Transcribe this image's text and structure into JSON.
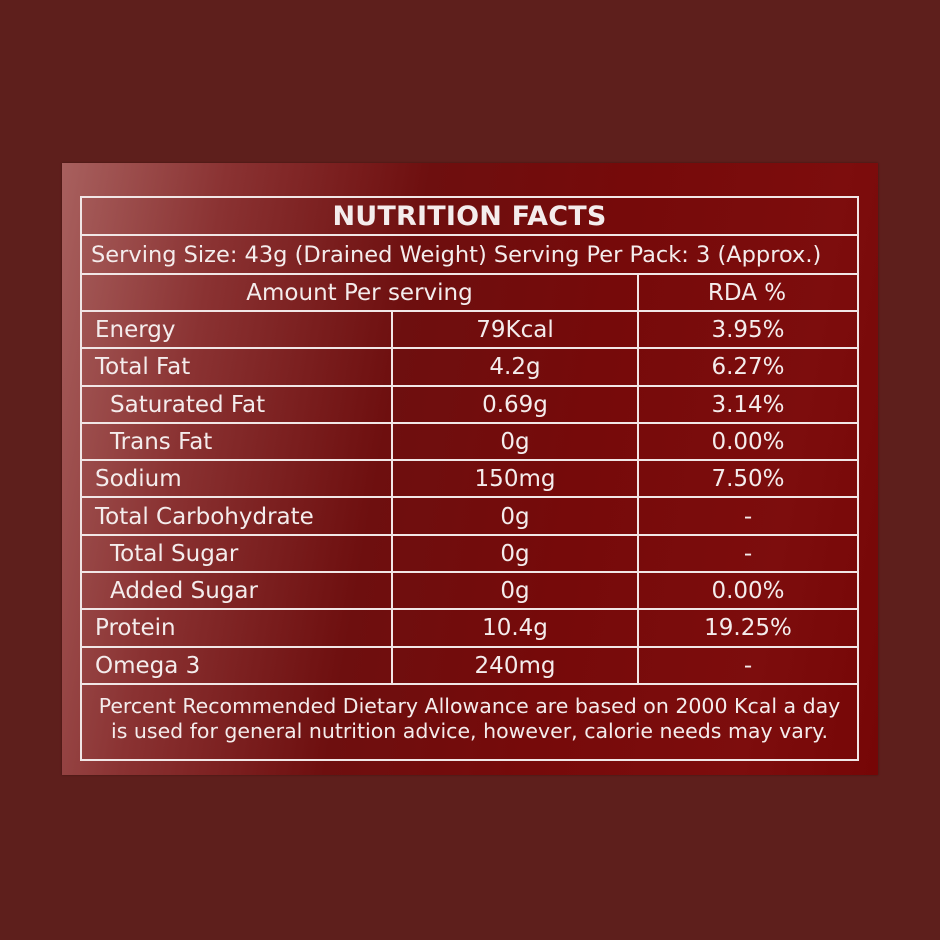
{
  "label": {
    "title": "NUTRITION FACTS",
    "serving_info": "Serving Size: 43g (Drained Weight) Serving Per Pack: 3 (Approx.)",
    "header": {
      "amount": "Amount Per serving",
      "rda": "RDA %"
    },
    "rows": [
      {
        "name": "Energy",
        "amount": "79Kcal",
        "rda": "3.95%"
      },
      {
        "name": "Total Fat",
        "amount": "4.2g",
        "rda": "6.27%"
      },
      {
        "name": "Saturated Fat",
        "amount": "0.69g",
        "rda": "3.14%"
      },
      {
        "name": "Trans Fat",
        "amount": "0g",
        "rda": "0.00%"
      },
      {
        "name": "Sodium",
        "amount": "150mg",
        "rda": "7.50%"
      },
      {
        "name": "Total Carbohydrate",
        "amount": "0g",
        "rda": "-"
      },
      {
        "name": "Total Sugar",
        "amount": "0g",
        "rda": "-"
      },
      {
        "name": "Added Sugar",
        "amount": "0g",
        "rda": "0.00%"
      },
      {
        "name": "Protein",
        "amount": "10.4g",
        "rda": "19.25%"
      },
      {
        "name": "Omega 3",
        "amount": "240mg",
        "rda": "-"
      }
    ],
    "footnote_line1": "Percent Recommended Dietary Allowance are based on 2000 Kcal a day",
    "footnote_line2": "is used for general nutrition advice, however, calorie needs may vary."
  },
  "colors": {
    "page_background": "#5e1f1c",
    "label_background": "#760a0a",
    "text_and_rules": "#f4ecec"
  }
}
